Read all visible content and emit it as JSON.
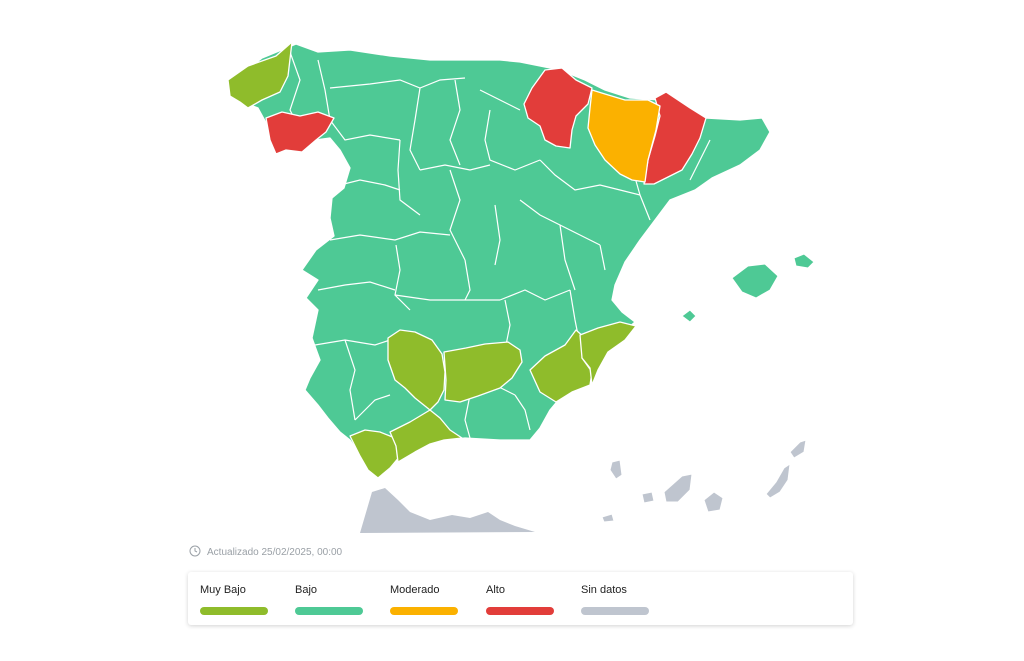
{
  "map": {
    "colors": {
      "muy_bajo": "#8fbc2b",
      "bajo": "#4ec995",
      "moderado": "#fbb100",
      "alto": "#e23d3a",
      "sin_datos": "#bfc5cf"
    }
  },
  "updated": {
    "icon": "clock-icon",
    "text": "Actualizado 25/02/2025, 00:00"
  },
  "legend": {
    "items": [
      {
        "label": "Muy Bajo",
        "color": "#8fbc2b"
      },
      {
        "label": "Bajo",
        "color": "#4ec995"
      },
      {
        "label": "Moderado",
        "color": "#fbb100"
      },
      {
        "label": "Alto",
        "color": "#e23d3a"
      },
      {
        "label": "Sin datos",
        "color": "#bfc5cf"
      }
    ]
  }
}
